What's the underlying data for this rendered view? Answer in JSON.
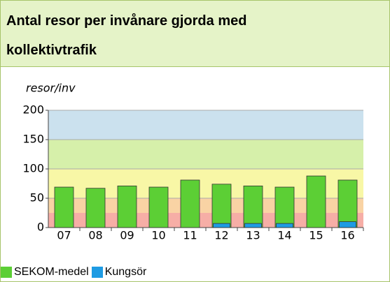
{
  "chart_data": {
    "type": "bar",
    "title": "Antal resor per invånare gjorda med kollektivtrafik",
    "y_label": "resor/inv",
    "categories": [
      "07",
      "08",
      "09",
      "10",
      "11",
      "12",
      "13",
      "14",
      "15",
      "16"
    ],
    "series": [
      {
        "name": "SEKOM-medel",
        "color": "#5ccf35",
        "values": [
          69,
          67,
          71,
          69,
          81,
          74,
          71,
          69,
          88,
          81
        ]
      },
      {
        "name": "Kungsör",
        "color": "#1e9be3",
        "values": [
          null,
          null,
          null,
          null,
          null,
          7,
          7,
          7,
          null,
          10
        ]
      }
    ],
    "bands": [
      {
        "from": 0,
        "to": 25,
        "color": "#f6aea6"
      },
      {
        "from": 25,
        "to": 50,
        "color": "#f9d3a4"
      },
      {
        "from": 50,
        "to": 100,
        "color": "#f8f7a6"
      },
      {
        "from": 100,
        "to": 150,
        "color": "#d6f0aa"
      },
      {
        "from": 150,
        "to": 200,
        "color": "#cbe1ee"
      }
    ],
    "ylim": [
      0,
      200
    ],
    "yticks": [
      0,
      50,
      100,
      150,
      200
    ],
    "grid": true
  }
}
